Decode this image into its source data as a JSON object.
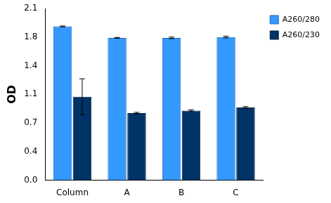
{
  "chart_data": {
    "type": "bar",
    "categories": [
      "Column",
      "A",
      "B",
      "C"
    ],
    "y_label": "OD",
    "series": [
      {
        "name": "A260/280",
        "color": "#3399ff",
        "values": [
          1.88,
          1.74,
          1.74,
          1.75
        ],
        "errors": [
          0.005,
          0.005,
          0.01,
          0.01
        ]
      },
      {
        "name": "A260/230",
        "color": "#003366",
        "values": [
          1.02,
          0.82,
          0.85,
          0.89
        ],
        "errors": [
          0.22,
          0.01,
          0.01,
          0.01
        ]
      }
    ],
    "ylim": [
      0,
      2.1
    ],
    "yticks": [
      {
        "value": 0,
        "label": "0.0"
      },
      {
        "value": 0.35,
        "label": "0.4"
      },
      {
        "value": 0.7,
        "label": "0.7"
      },
      {
        "value": 1.05,
        "label": "1.1"
      },
      {
        "value": 1.4,
        "label": "1.4"
      },
      {
        "value": 1.75,
        "label": "1.8"
      },
      {
        "value": 2.1,
        "label": "2.1"
      }
    ],
    "grid": false,
    "legend": "upper right"
  }
}
